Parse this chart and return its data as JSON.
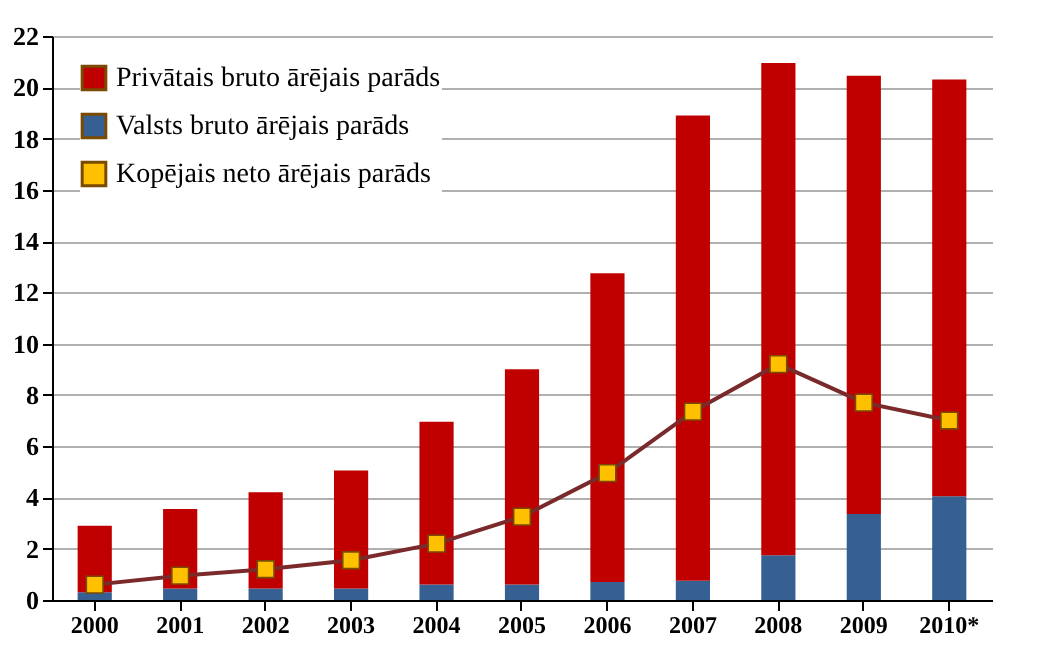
{
  "chart_data": {
    "type": "bar",
    "stacked": true,
    "categories": [
      "2000",
      "2001",
      "2002",
      "2003",
      "2004",
      "2005",
      "2006",
      "2007",
      "2008",
      "2009",
      "2010*"
    ],
    "series": [
      {
        "name": "Valsts bruto ārējais parāds",
        "color": "#376092",
        "values": [
          0.3,
          0.45,
          0.45,
          0.45,
          0.6,
          0.6,
          0.7,
          0.75,
          1.75,
          3.35,
          4.05
        ]
      },
      {
        "name": "Privātais bruto ārējais parāds",
        "color": "#c00000",
        "values": [
          2.6,
          3.1,
          3.75,
          4.6,
          6.35,
          8.4,
          12.05,
          18.15,
          19.2,
          17.1,
          16.25
        ]
      },
      {
        "name": "Kopējais neto ārējais parāds",
        "type": "line",
        "color": "#ffc000",
        "marker": "square",
        "line_style": "solid",
        "values": [
          0.6,
          0.95,
          1.2,
          1.55,
          2.2,
          3.25,
          4.95,
          7.35,
          9.2,
          7.7,
          7.0
        ]
      }
    ],
    "ylim": [
      0,
      22
    ],
    "yticks": [
      0,
      2,
      4,
      6,
      8,
      10,
      12,
      14,
      16,
      18,
      20,
      22
    ],
    "grid": "y",
    "legend": "top left"
  }
}
